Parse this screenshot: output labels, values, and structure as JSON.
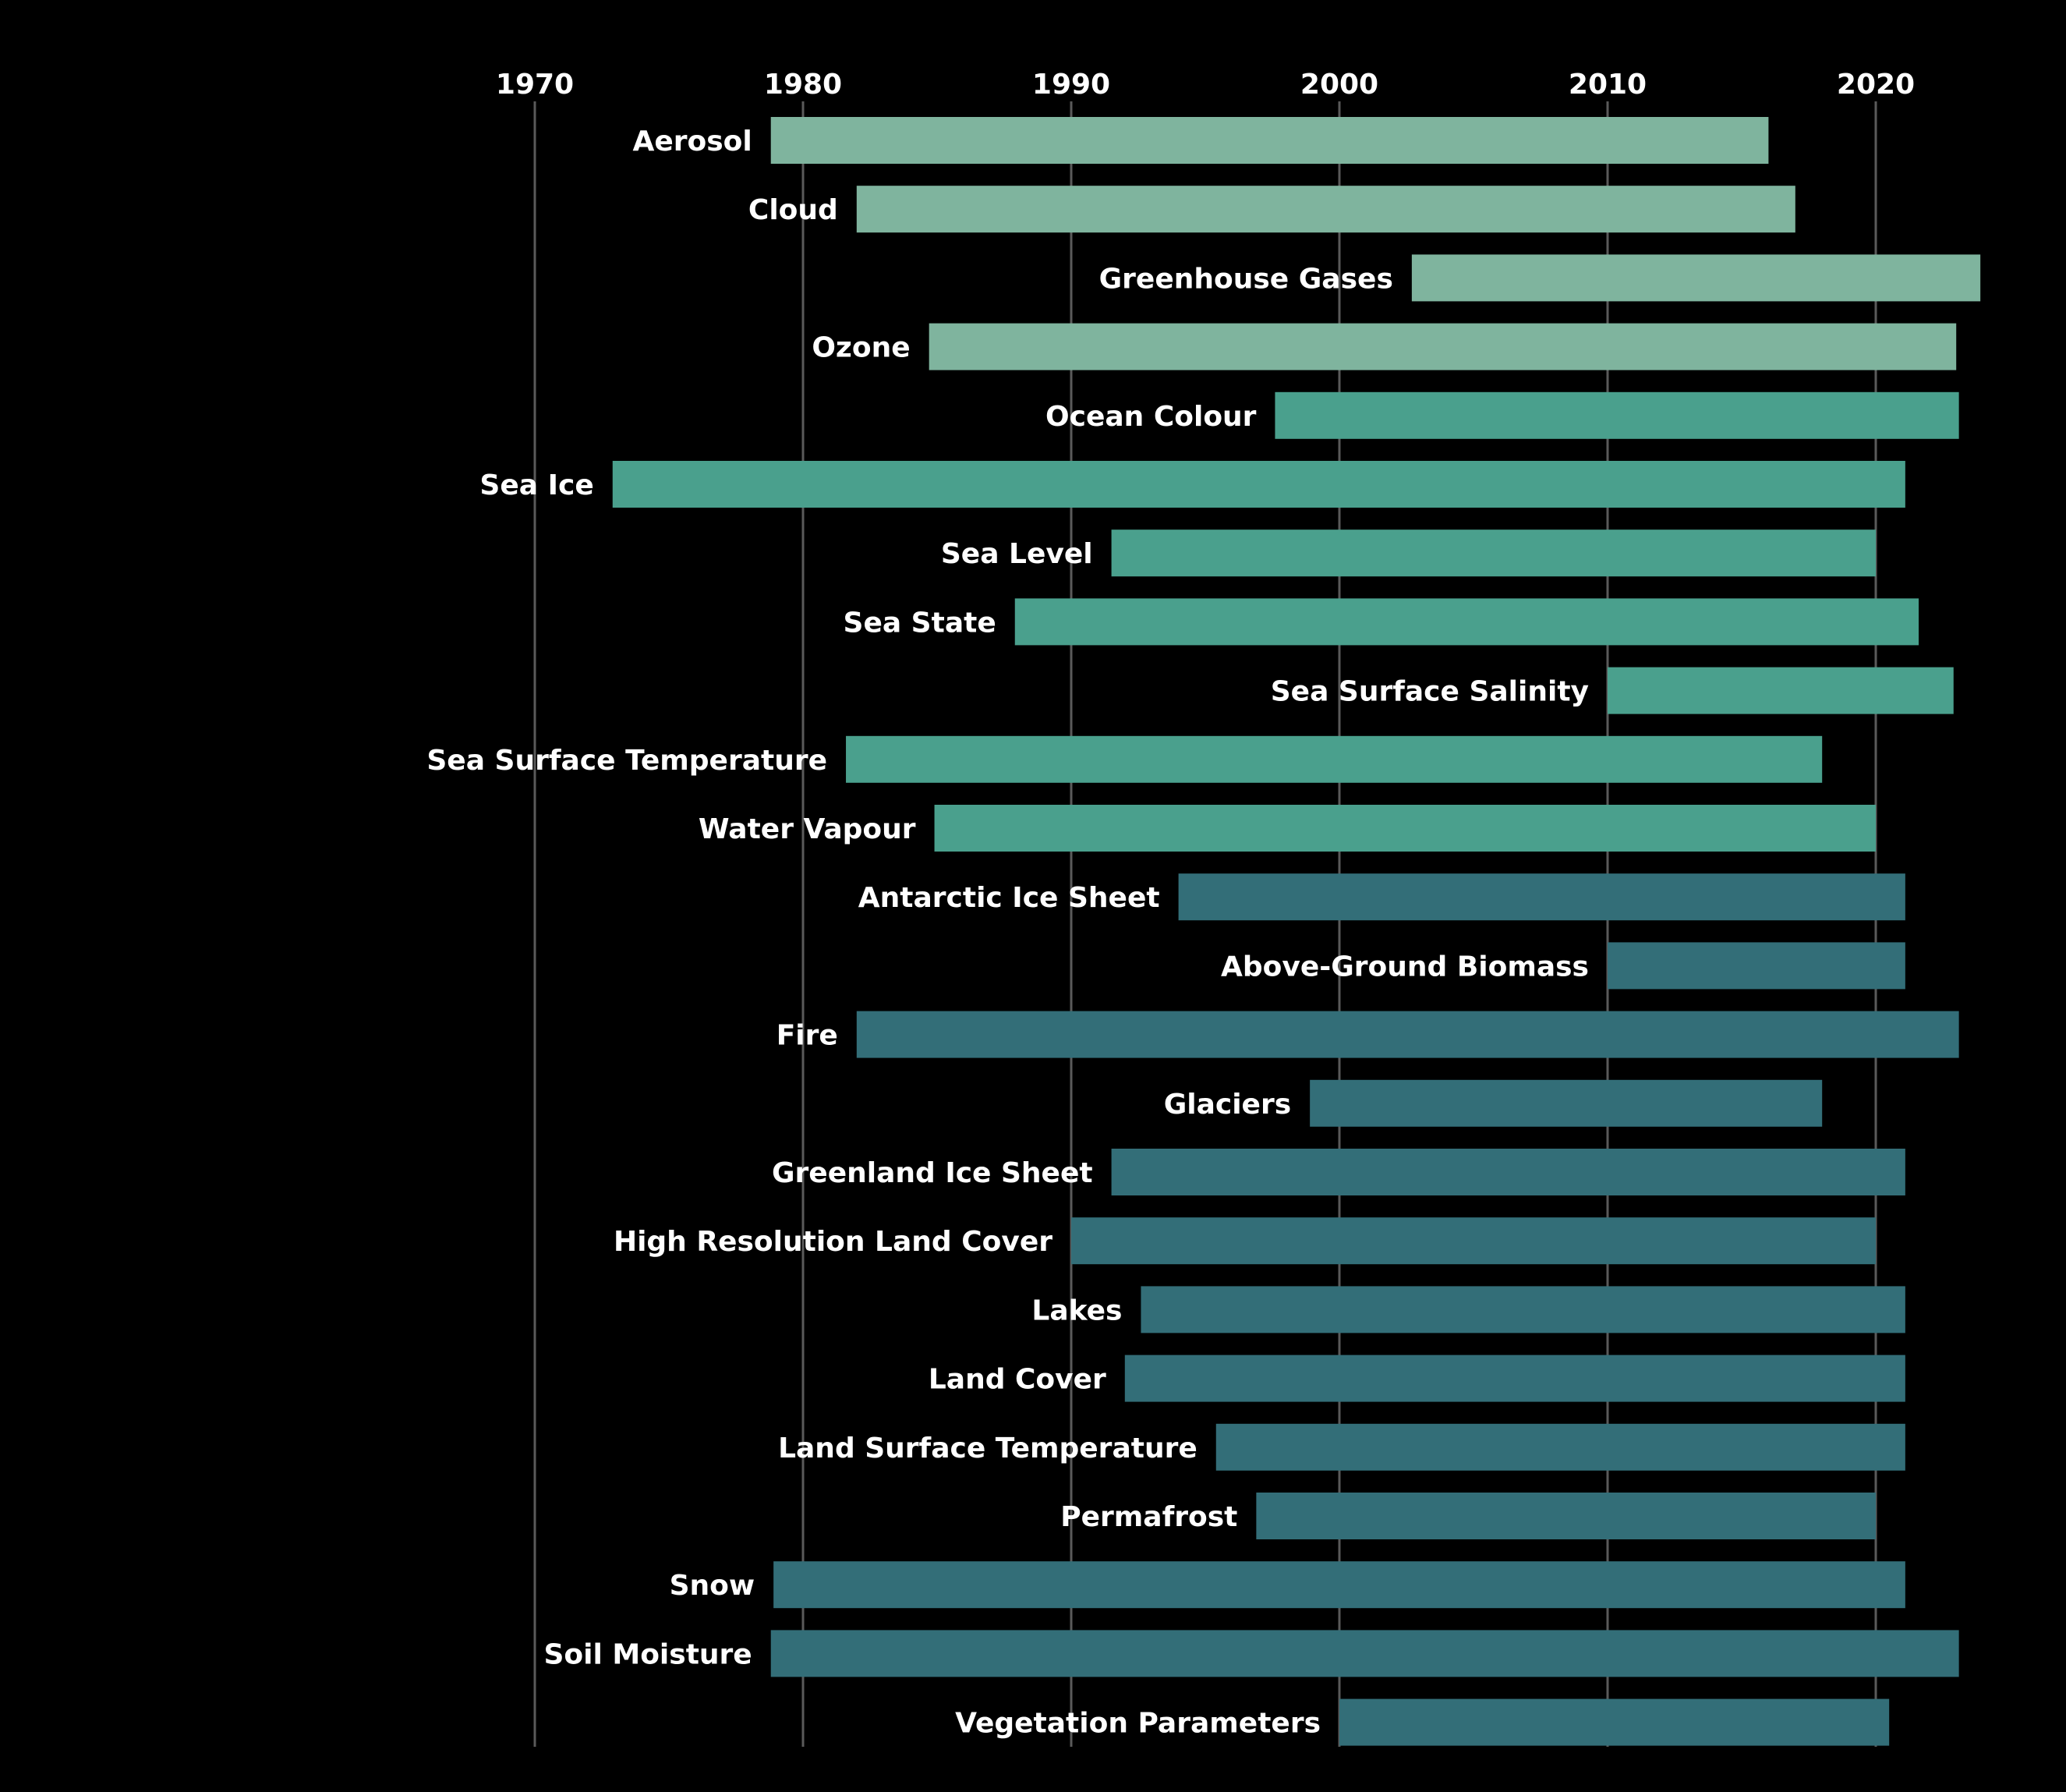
{
  "chart_data": {
    "type": "bar",
    "orientation": "horizontal",
    "title": "",
    "xlabel": "",
    "ylabel": "",
    "xlim": [
      1970,
      2025
    ],
    "x_ticks": [
      "1970",
      "1980",
      "1990",
      "2000",
      "2010",
      "2020"
    ],
    "grid": true,
    "legend": "none",
    "colors": {
      "background": "#000000",
      "atmosphere": "#7fb49e",
      "ocean": "#4aa08d",
      "land": "#336e78",
      "gridline": "#5a5a5a",
      "text": "#ffffff"
    },
    "bars": [
      {
        "label": "Aerosol",
        "start": 1978.8,
        "end": 2016.0,
        "group": "atmosphere"
      },
      {
        "label": "Cloud",
        "start": 1982.0,
        "end": 2017.0,
        "group": "atmosphere"
      },
      {
        "label": "Greenhouse Gases",
        "start": 2002.7,
        "end": 2023.9,
        "group": "atmosphere"
      },
      {
        "label": "Ozone",
        "start": 1984.7,
        "end": 2023.0,
        "group": "atmosphere"
      },
      {
        "label": "Ocean Colour",
        "start": 1997.6,
        "end": 2023.1,
        "group": "ocean"
      },
      {
        "label": "Sea Ice",
        "start": 1972.9,
        "end": 2021.1,
        "group": "ocean"
      },
      {
        "label": "Sea Level",
        "start": 1991.5,
        "end": 2020.0,
        "group": "ocean"
      },
      {
        "label": "Sea State",
        "start": 1987.9,
        "end": 2021.6,
        "group": "ocean"
      },
      {
        "label": "Sea Surface Salinity",
        "start": 2010.0,
        "end": 2022.9,
        "group": "ocean"
      },
      {
        "label": "Sea Surface Temperature",
        "start": 1981.6,
        "end": 2018.0,
        "group": "ocean"
      },
      {
        "label": "Water Vapour",
        "start": 1984.9,
        "end": 2020.0,
        "group": "ocean"
      },
      {
        "label": "Antarctic Ice Sheet",
        "start": 1994.0,
        "end": 2021.1,
        "group": "land"
      },
      {
        "label": "Above-Ground Biomass",
        "start": 2010.0,
        "end": 2021.1,
        "group": "land"
      },
      {
        "label": "Fire",
        "start": 1982.0,
        "end": 2023.1,
        "group": "land"
      },
      {
        "label": "Glaciers",
        "start": 1998.9,
        "end": 2018.0,
        "group": "land"
      },
      {
        "label": "Greenland Ice Sheet",
        "start": 1991.5,
        "end": 2021.1,
        "group": "land"
      },
      {
        "label": "High Resolution Land Cover",
        "start": 1990.0,
        "end": 2020.0,
        "group": "land"
      },
      {
        "label": "Lakes",
        "start": 1992.6,
        "end": 2021.1,
        "group": "land"
      },
      {
        "label": "Land Cover",
        "start": 1992.0,
        "end": 2021.1,
        "group": "land"
      },
      {
        "label": "Land Surface Temperature",
        "start": 1995.4,
        "end": 2021.1,
        "group": "land"
      },
      {
        "label": "Permafrost",
        "start": 1996.9,
        "end": 2020.0,
        "group": "land"
      },
      {
        "label": "Snow",
        "start": 1978.9,
        "end": 2021.1,
        "group": "land"
      },
      {
        "label": "Soil Moisture",
        "start": 1978.8,
        "end": 2023.1,
        "group": "land"
      },
      {
        "label": "Vegetation Parameters",
        "start": 2000.0,
        "end": 2020.5,
        "group": "land"
      }
    ]
  }
}
